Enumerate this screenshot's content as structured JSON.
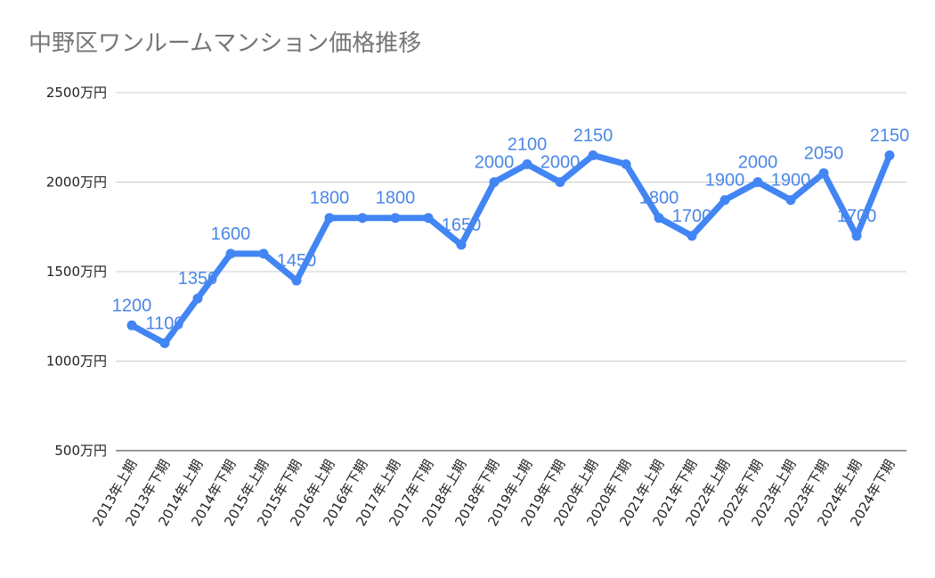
{
  "chart_data": {
    "type": "line",
    "title": "中野区ワンルームマンション価格推移",
    "xlabel": "",
    "ylabel": "",
    "ylim": [
      500,
      2500
    ],
    "yticks": [
      500,
      1000,
      1500,
      2000,
      2500
    ],
    "ytick_labels": [
      "500万円",
      "1000万円",
      "1500万円",
      "2000万円",
      "2500万円"
    ],
    "grid": true,
    "categories": [
      "2013年上期",
      "2013年下期",
      "2014年上期",
      "2014年下期",
      "2015年上期",
      "2015年下期",
      "2016年上期",
      "2016年下期",
      "2017年上期",
      "2017年下期",
      "2018年上期",
      "2018年下期",
      "2019年上期",
      "2019年下期",
      "2020年上期",
      "2020年下期",
      "2021年上期",
      "2021年下期",
      "2022年上期",
      "2022年下期",
      "2023年上期",
      "2023年下期",
      "2024年上期",
      "2024年下期"
    ],
    "series": [
      {
        "name": "価格",
        "color": "#4285f4",
        "label_color": "#4a86e8",
        "values": [
          1200,
          1100,
          1350,
          1600,
          1600,
          1450,
          1800,
          1800,
          1800,
          1800,
          1650,
          2000,
          2100,
          2000,
          2150,
          2100,
          1800,
          1700,
          1900,
          2000,
          1900,
          2050,
          1700,
          2150
        ],
        "data_labels": [
          "1200",
          "1100",
          "1350",
          "1600",
          "",
          "1450",
          "1800",
          "",
          "1800",
          "",
          "1650",
          "2000",
          "2100",
          "2000",
          "2150",
          "",
          "1800",
          "1700",
          "1900",
          "2000",
          "1900",
          "2050",
          "1700",
          "2150"
        ]
      }
    ]
  }
}
